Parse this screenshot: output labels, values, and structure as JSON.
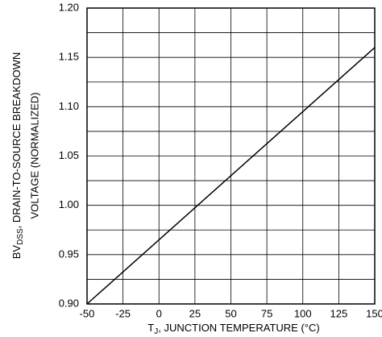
{
  "chart_data": {
    "type": "line",
    "xlabel": {
      "main": "T",
      "sub": "J",
      "rest": ", JUNCTION TEMPERATURE (°C)"
    },
    "ylabel": {
      "main": "BV",
      "sub": "DSS",
      "rest": ", DRAIN-TO-SOURCE BREAKDOWN",
      "line2": "VOLTAGE (NORMALIZED)"
    },
    "x": [
      -50,
      150
    ],
    "series": [
      {
        "color": "#000000",
        "values": [
          0.9,
          1.16
        ]
      }
    ],
    "xlim": [
      -50,
      150
    ],
    "xticks": [
      -50,
      -25,
      0,
      25,
      50,
      75,
      100,
      125,
      150
    ],
    "ylim": [
      0.9,
      1.2
    ],
    "yticks": [
      {
        "value": 0.9,
        "label": "0.90"
      },
      0.95,
      {
        "value": 1.0,
        "label": "1.00"
      },
      1.05,
      {
        "value": 1.1,
        "label": "1.10"
      },
      1.15,
      {
        "value": 1.2,
        "label": "1.20"
      }
    ],
    "yminorticks": [
      0.925,
      0.975,
      1.025,
      1.075,
      1.125,
      1.175
    ],
    "grid": true
  }
}
